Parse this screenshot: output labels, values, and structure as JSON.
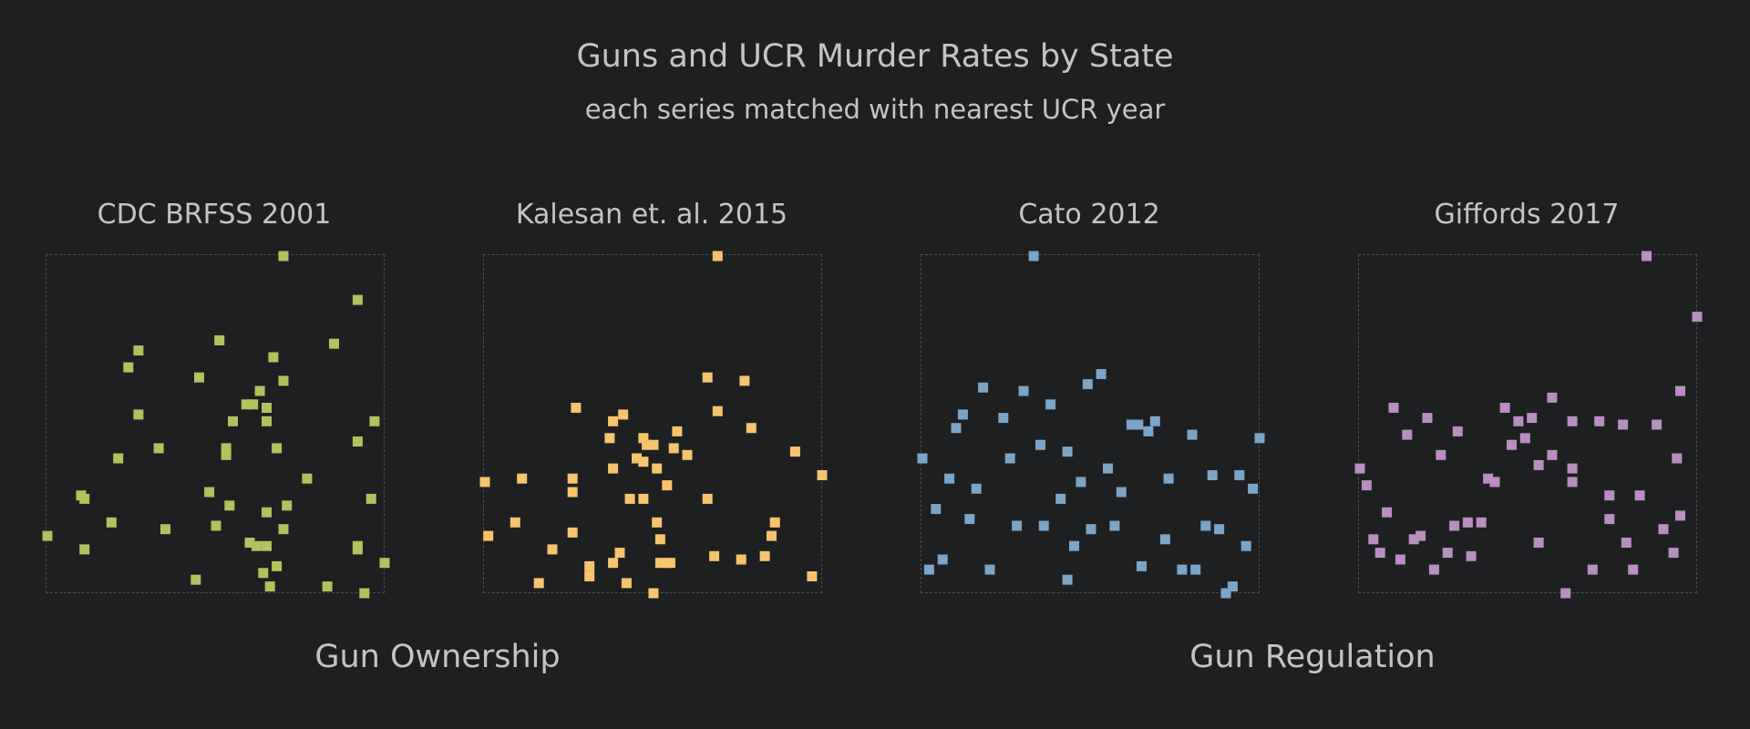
{
  "header": {
    "title": "Guns and UCR Murder Rates by State",
    "subtitle": "each series matched with nearest UCR year"
  },
  "groups": [
    {
      "label": "Gun Ownership"
    },
    {
      "label": "Gun Regulation"
    }
  ],
  "chart_data": [
    {
      "type": "scatter",
      "title": "CDC BRFSS 2001",
      "color": "#b3c15e",
      "xlim": [
        0,
        1
      ],
      "ylim": [
        0,
        1
      ],
      "points": [
        [
          0.7,
          1.0
        ],
        [
          0.92,
          0.87
        ],
        [
          0.85,
          0.74
        ],
        [
          0.51,
          0.75
        ],
        [
          0.27,
          0.72
        ],
        [
          0.24,
          0.67
        ],
        [
          0.67,
          0.7
        ],
        [
          0.45,
          0.64
        ],
        [
          0.7,
          0.63
        ],
        [
          0.63,
          0.6
        ],
        [
          0.61,
          0.56
        ],
        [
          0.59,
          0.56
        ],
        [
          0.65,
          0.55
        ],
        [
          0.27,
          0.53
        ],
        [
          0.55,
          0.51
        ],
        [
          0.65,
          0.51
        ],
        [
          0.97,
          0.51
        ],
        [
          0.92,
          0.45
        ],
        [
          0.33,
          0.43
        ],
        [
          0.53,
          0.43
        ],
        [
          0.68,
          0.43
        ],
        [
          0.53,
          0.41
        ],
        [
          0.21,
          0.4
        ],
        [
          0.77,
          0.34
        ],
        [
          0.1,
          0.29
        ],
        [
          0.48,
          0.3
        ],
        [
          0.11,
          0.28
        ],
        [
          0.54,
          0.26
        ],
        [
          0.71,
          0.26
        ],
        [
          0.96,
          0.28
        ],
        [
          0.65,
          0.24
        ],
        [
          0.19,
          0.21
        ],
        [
          0.5,
          0.2
        ],
        [
          0.35,
          0.19
        ],
        [
          0.7,
          0.19
        ],
        [
          0.0,
          0.17
        ],
        [
          0.6,
          0.15
        ],
        [
          0.62,
          0.14
        ],
        [
          0.65,
          0.14
        ],
        [
          0.11,
          0.13
        ],
        [
          0.92,
          0.14
        ],
        [
          0.92,
          0.13
        ],
        [
          1.0,
          0.09
        ],
        [
          0.68,
          0.08
        ],
        [
          0.64,
          0.06
        ],
        [
          0.44,
          0.04
        ],
        [
          0.83,
          0.02
        ],
        [
          0.66,
          0.02
        ],
        [
          0.94,
          0.0
        ]
      ]
    },
    {
      "type": "scatter",
      "title": "Kalesan et. al. 2015",
      "color": "#f6c46d",
      "xlim": [
        0,
        1
      ],
      "ylim": [
        0,
        1
      ],
      "points": [
        [
          0.69,
          1.0
        ],
        [
          0.66,
          0.64
        ],
        [
          0.77,
          0.63
        ],
        [
          0.27,
          0.55
        ],
        [
          0.69,
          0.54
        ],
        [
          0.41,
          0.53
        ],
        [
          0.38,
          0.51
        ],
        [
          0.79,
          0.49
        ],
        [
          0.57,
          0.48
        ],
        [
          0.37,
          0.46
        ],
        [
          0.47,
          0.46
        ],
        [
          0.48,
          0.44
        ],
        [
          0.5,
          0.44
        ],
        [
          0.56,
          0.43
        ],
        [
          0.92,
          0.42
        ],
        [
          0.6,
          0.41
        ],
        [
          0.45,
          0.4
        ],
        [
          0.47,
          0.39
        ],
        [
          0.38,
          0.37
        ],
        [
          0.51,
          0.37
        ],
        [
          0.11,
          0.34
        ],
        [
          0.26,
          0.34
        ],
        [
          1.0,
          0.35
        ],
        [
          0.0,
          0.33
        ],
        [
          0.54,
          0.32
        ],
        [
          0.26,
          0.3
        ],
        [
          0.43,
          0.28
        ],
        [
          0.47,
          0.28
        ],
        [
          0.66,
          0.28
        ],
        [
          0.09,
          0.21
        ],
        [
          0.51,
          0.21
        ],
        [
          0.86,
          0.21
        ],
        [
          0.26,
          0.18
        ],
        [
          0.52,
          0.16
        ],
        [
          0.85,
          0.17
        ],
        [
          0.01,
          0.17
        ],
        [
          0.2,
          0.13
        ],
        [
          0.4,
          0.12
        ],
        [
          0.68,
          0.11
        ],
        [
          0.76,
          0.1
        ],
        [
          0.83,
          0.11
        ],
        [
          0.31,
          0.08
        ],
        [
          0.38,
          0.09
        ],
        [
          0.52,
          0.09
        ],
        [
          0.54,
          0.09
        ],
        [
          0.55,
          0.09
        ],
        [
          0.31,
          0.05
        ],
        [
          0.97,
          0.05
        ],
        [
          0.16,
          0.03
        ],
        [
          0.42,
          0.03
        ],
        [
          0.5,
          0.0
        ]
      ]
    },
    {
      "type": "scatter",
      "title": "Cato 2012",
      "color": "#7ba5c8",
      "xlim": [
        0,
        1
      ],
      "ylim": [
        0,
        1
      ],
      "points": [
        [
          0.33,
          1.0
        ],
        [
          0.53,
          0.65
        ],
        [
          0.49,
          0.62
        ],
        [
          0.18,
          0.61
        ],
        [
          0.3,
          0.6
        ],
        [
          0.38,
          0.56
        ],
        [
          0.12,
          0.53
        ],
        [
          0.24,
          0.52
        ],
        [
          0.62,
          0.5
        ],
        [
          0.64,
          0.5
        ],
        [
          0.69,
          0.51
        ],
        [
          0.1,
          0.49
        ],
        [
          0.67,
          0.48
        ],
        [
          0.8,
          0.47
        ],
        [
          1.0,
          0.46
        ],
        [
          0.35,
          0.44
        ],
        [
          0.43,
          0.42
        ],
        [
          0.0,
          0.4
        ],
        [
          0.26,
          0.4
        ],
        [
          0.55,
          0.37
        ],
        [
          0.08,
          0.34
        ],
        [
          0.86,
          0.35
        ],
        [
          0.94,
          0.35
        ],
        [
          0.47,
          0.33
        ],
        [
          0.73,
          0.34
        ],
        [
          0.16,
          0.31
        ],
        [
          0.59,
          0.3
        ],
        [
          0.41,
          0.28
        ],
        [
          0.98,
          0.31
        ],
        [
          0.04,
          0.25
        ],
        [
          0.14,
          0.22
        ],
        [
          0.28,
          0.2
        ],
        [
          0.36,
          0.2
        ],
        [
          0.57,
          0.2
        ],
        [
          0.5,
          0.19
        ],
        [
          0.84,
          0.2
        ],
        [
          0.88,
          0.19
        ],
        [
          0.72,
          0.16
        ],
        [
          0.45,
          0.14
        ],
        [
          0.96,
          0.14
        ],
        [
          0.06,
          0.1
        ],
        [
          0.02,
          0.07
        ],
        [
          0.2,
          0.07
        ],
        [
          0.65,
          0.08
        ],
        [
          0.77,
          0.07
        ],
        [
          0.81,
          0.07
        ],
        [
          0.43,
          0.04
        ],
        [
          0.92,
          0.02
        ],
        [
          0.9,
          0.0
        ]
      ]
    },
    {
      "type": "scatter",
      "title": "Giffords 2017",
      "color": "#b88fc0",
      "xlim": [
        0,
        1
      ],
      "ylim": [
        0,
        1
      ],
      "points": [
        [
          0.85,
          1.0
        ],
        [
          1.0,
          0.82
        ],
        [
          0.95,
          0.6
        ],
        [
          0.57,
          0.58
        ],
        [
          0.1,
          0.55
        ],
        [
          0.43,
          0.55
        ],
        [
          0.2,
          0.52
        ],
        [
          0.47,
          0.51
        ],
        [
          0.51,
          0.52
        ],
        [
          0.63,
          0.51
        ],
        [
          0.71,
          0.51
        ],
        [
          0.78,
          0.5
        ],
        [
          0.88,
          0.5
        ],
        [
          0.29,
          0.48
        ],
        [
          0.14,
          0.47
        ],
        [
          0.45,
          0.44
        ],
        [
          0.49,
          0.46
        ],
        [
          0.24,
          0.41
        ],
        [
          0.57,
          0.41
        ],
        [
          0.94,
          0.4
        ],
        [
          0.53,
          0.38
        ],
        [
          0.63,
          0.37
        ],
        [
          0.0,
          0.37
        ],
        [
          0.38,
          0.34
        ],
        [
          0.4,
          0.33
        ],
        [
          0.63,
          0.33
        ],
        [
          0.02,
          0.32
        ],
        [
          0.74,
          0.29
        ],
        [
          0.83,
          0.29
        ],
        [
          0.08,
          0.24
        ],
        [
          0.95,
          0.23
        ],
        [
          0.74,
          0.22
        ],
        [
          0.28,
          0.2
        ],
        [
          0.32,
          0.21
        ],
        [
          0.36,
          0.21
        ],
        [
          0.9,
          0.19
        ],
        [
          0.04,
          0.16
        ],
        [
          0.16,
          0.16
        ],
        [
          0.18,
          0.17
        ],
        [
          0.53,
          0.15
        ],
        [
          0.79,
          0.15
        ],
        [
          0.06,
          0.12
        ],
        [
          0.26,
          0.12
        ],
        [
          0.33,
          0.11
        ],
        [
          0.93,
          0.12
        ],
        [
          0.12,
          0.1
        ],
        [
          0.22,
          0.07
        ],
        [
          0.69,
          0.07
        ],
        [
          0.81,
          0.07
        ],
        [
          0.61,
          0.0
        ]
      ]
    }
  ]
}
